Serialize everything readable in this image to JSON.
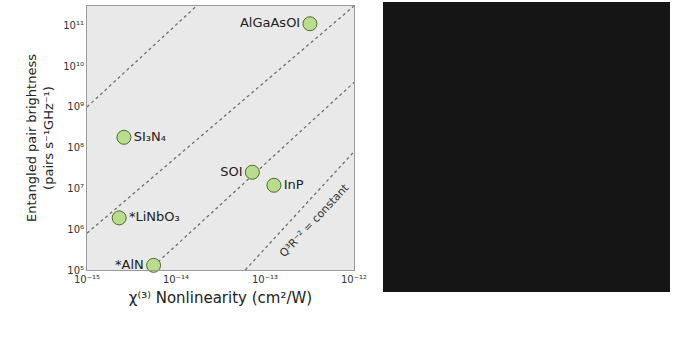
{
  "chart_data": {
    "type": "scatter",
    "log": true,
    "grid": false,
    "x_label": "χ⁽³⁾ Nonlinearity (cm²/W)",
    "y_label": [
      "Entangled pair brightness",
      "(pairs s⁻¹GHz⁻¹)"
    ],
    "xlim": [
      1e-15,
      1e-12
    ],
    "ylim": [
      100000.0,
      300000000000.0
    ],
    "xticks": [
      {
        "value": 1e-15,
        "label": "10⁻¹⁵"
      },
      {
        "value": 1e-14,
        "label": "10⁻¹⁴"
      },
      {
        "value": 1e-13,
        "label": "10⁻¹³"
      },
      {
        "value": 1e-12,
        "label": "10⁻¹²"
      }
    ],
    "yticks": [
      {
        "value": 100000.0,
        "label": "10⁵"
      },
      {
        "value": 1000000.0,
        "label": "10⁶"
      },
      {
        "value": 10000000.0,
        "label": "10⁷"
      },
      {
        "value": 100000000.0,
        "label": "10⁸"
      },
      {
        "value": 1000000000.0,
        "label": "10⁹"
      },
      {
        "value": 10000000000.0,
        "label": "10¹⁰"
      },
      {
        "value": 100000000000.0,
        "label": "10¹¹"
      }
    ],
    "points": {
      "labels": [
        "AlGaAsOI",
        "SI₃N₄",
        "SOI",
        "InP",
        "*LiNbO₃",
        "*AlN"
      ],
      "x": [
        3.2e-13,
        2.6e-15,
        7.2e-14,
        1.26e-13,
        2.3e-15,
        5.6e-15
      ],
      "values": [
        110000000000.0,
        180000000.0,
        25000000.0,
        12000000.0,
        1900000.0,
        130000.0
      ],
      "color": "#b9dc8e",
      "marker": "circle"
    },
    "guides": [
      {
        "x": [
          1e-15,
          1.7e-14
        ],
        "values": [
          1000000000.0,
          300000000000.0
        ],
        "line_style": "dot",
        "color": "#6e6e6e"
      },
      {
        "x": [
          1e-15,
          1e-12
        ],
        "values": [
          800000.0,
          300000000000.0
        ],
        "line_style": "dot",
        "color": "#6e6e6e"
      },
      {
        "x": [
          5e-15,
          1e-12
        ],
        "values": [
          100000.0,
          4000000000.0
        ],
        "line_style": "dot",
        "color": "#6e6e6e"
      },
      {
        "x": [
          6e-14,
          1e-12
        ],
        "values": [
          100000.0,
          80000000.0
        ],
        "line_style": "dot",
        "color": "#6e6e6e"
      }
    ],
    "annotations": [
      {
        "text": "Q³R⁻² = constant",
        "x": 3.6e-13,
        "y": 1600000.0
      }
    ]
  }
}
